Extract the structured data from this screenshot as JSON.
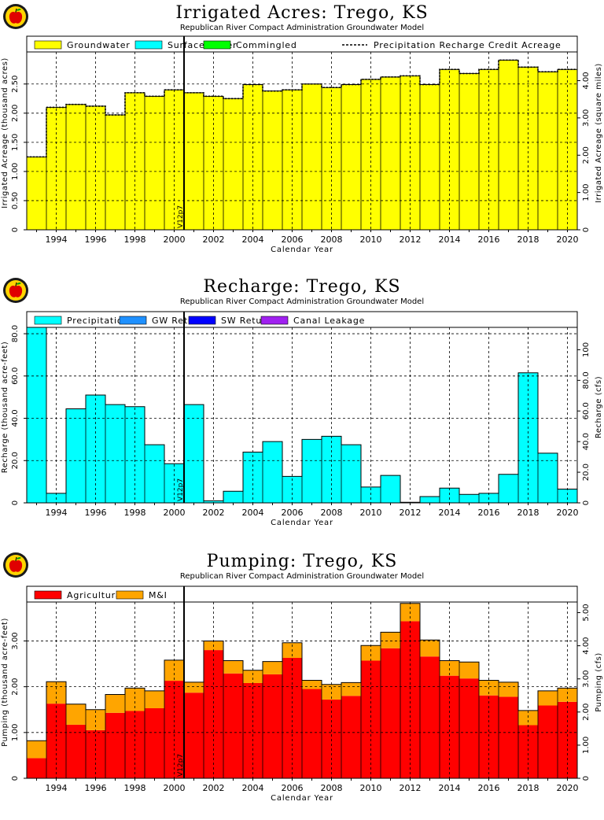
{
  "chart_data": [
    {
      "type": "bar",
      "title": "Irrigated Acres:  Trego, KS",
      "subtitle": "Republican River Compact Administration Groundwater Model",
      "xlabel": "Calendar Year",
      "ylabel": "Irrigated Acreage (thousand acres)",
      "y2label": "Irrigated Acreage (square miles)",
      "years": [
        1993,
        1994,
        1995,
        1996,
        1997,
        1998,
        1999,
        2000,
        2001,
        2002,
        2003,
        2004,
        2005,
        2006,
        2007,
        2008,
        2009,
        2010,
        2011,
        2012,
        2013,
        2014,
        2015,
        2016,
        2017,
        2018,
        2019,
        2020
      ],
      "xticks": [
        "1994",
        "1996",
        "1998",
        "2000",
        "2002",
        "2004",
        "2006",
        "2008",
        "2010",
        "2012",
        "2014",
        "2016",
        "2018",
        "2020"
      ],
      "ylim": [
        0,
        3.05
      ],
      "yticks": [
        "0",
        "0.50",
        "1.00",
        "1.50",
        "2.00",
        "2.50"
      ],
      "y2lim": [
        0,
        4.77
      ],
      "y2ticks": [
        "0",
        "1.00",
        "2.00",
        "3.00",
        "4.00"
      ],
      "marker_label": "V12p7",
      "marker_year": 2000.5,
      "series": [
        {
          "name": "Groundwater",
          "color": "#ffff00",
          "values": [
            1.25,
            2.1,
            2.15,
            2.12,
            1.97,
            2.35,
            2.29,
            2.4,
            2.35,
            2.29,
            2.25,
            2.49,
            2.38,
            2.4,
            2.5,
            2.44,
            2.49,
            2.58,
            2.62,
            2.64,
            2.49,
            2.75,
            2.68,
            2.75,
            2.91,
            2.79,
            2.71,
            2.75
          ]
        },
        {
          "name": "Surface Water",
          "color": "#00ffff",
          "values": [
            0,
            0,
            0,
            0,
            0,
            0,
            0,
            0,
            0,
            0,
            0,
            0,
            0,
            0,
            0,
            0,
            0,
            0,
            0,
            0,
            0,
            0,
            0,
            0,
            0,
            0,
            0,
            0
          ]
        },
        {
          "name": "Commingled",
          "color": "#00ff00",
          "values": [
            0,
            0,
            0,
            0,
            0,
            0,
            0,
            0,
            0,
            0,
            0,
            0,
            0,
            0,
            0,
            0,
            0,
            0,
            0,
            0,
            0,
            0,
            0,
            0,
            0,
            0,
            0,
            0
          ]
        }
      ],
      "line": {
        "name": "Precipitation Recharge Credit Acreage",
        "values": [
          1.25,
          2.1,
          2.15,
          2.12,
          1.97,
          2.35,
          2.29,
          2.4,
          2.35,
          2.29,
          2.25,
          2.49,
          2.38,
          2.4,
          2.5,
          2.44,
          2.49,
          2.58,
          2.62,
          2.64,
          2.49,
          2.75,
          2.68,
          2.75,
          2.91,
          2.79,
          2.71,
          2.75
        ]
      }
    },
    {
      "type": "bar",
      "title": "Recharge:  Trego, KS",
      "subtitle": "Republican River Compact Administration Groundwater Model",
      "xlabel": "Calendar Year",
      "ylabel": "Recharge (thousand acre-feet)",
      "y2label": "Recharge (cfs)",
      "years": [
        1993,
        1994,
        1995,
        1996,
        1997,
        1998,
        1999,
        2000,
        2001,
        2002,
        2003,
        2004,
        2005,
        2006,
        2007,
        2008,
        2009,
        2010,
        2011,
        2012,
        2013,
        2014,
        2015,
        2016,
        2017,
        2018,
        2019,
        2020
      ],
      "xticks": [
        "1994",
        "1996",
        "1998",
        "2000",
        "2002",
        "2004",
        "2006",
        "2008",
        "2010",
        "2012",
        "2014",
        "2016",
        "2018",
        "2020"
      ],
      "ylim": [
        0,
        83
      ],
      "yticks": [
        "0",
        "20.0",
        "40.0",
        "60.0",
        "80.0"
      ],
      "y2lim": [
        0,
        114.6
      ],
      "y2ticks": [
        "0",
        "20.0",
        "40.0",
        "60.0",
        "80.0",
        "100"
      ],
      "marker_label": "V12p7",
      "marker_year": 2000.5,
      "series": [
        {
          "name": "Precipitation",
          "color": "#00ffff",
          "values": [
            83.0,
            4.5,
            44.5,
            51.0,
            46.5,
            45.5,
            27.5,
            18.5,
            46.5,
            1.0,
            5.5,
            24.0,
            29.0,
            12.5,
            30.0,
            31.5,
            27.5,
            7.5,
            13.0,
            0.3,
            3.0,
            7.0,
            4.0,
            4.5,
            13.5,
            61.5,
            23.5,
            6.5
          ]
        },
        {
          "name": "GW Returns",
          "color": "#1e90ff",
          "values": [
            0,
            0,
            0,
            0,
            0,
            0,
            0,
            0,
            0,
            0,
            0,
            0,
            0,
            0,
            0,
            0,
            0,
            0,
            0,
            0,
            0,
            0,
            0,
            0,
            0,
            0,
            0,
            0
          ]
        },
        {
          "name": "SW Returns",
          "color": "#0000ff",
          "values": [
            0,
            0,
            0,
            0,
            0,
            0,
            0,
            0,
            0,
            0,
            0,
            0,
            0,
            0,
            0,
            0,
            0,
            0,
            0,
            0,
            0,
            0,
            0,
            0,
            0,
            0,
            0,
            0
          ]
        },
        {
          "name": "Canal Leakage",
          "color": "#a020f0",
          "values": [
            0,
            0,
            0,
            0,
            0,
            0,
            0,
            0,
            0,
            0,
            0,
            0,
            0,
            0,
            0,
            0,
            0,
            0,
            0,
            0,
            0,
            0,
            0,
            0,
            0,
            0,
            0,
            0
          ]
        }
      ]
    },
    {
      "type": "bar",
      "title": "Pumping:  Trego, KS",
      "subtitle": "Republican River Compact Administration Groundwater Model",
      "xlabel": "Calendar Year",
      "ylabel": "Pumping (thousand acre-feet)",
      "y2label": "Pumping (cfs)",
      "years": [
        1993,
        1994,
        1995,
        1996,
        1997,
        1998,
        1999,
        2000,
        2001,
        2002,
        2003,
        2004,
        2005,
        2006,
        2007,
        2008,
        2009,
        2010,
        2011,
        2012,
        2013,
        2014,
        2015,
        2016,
        2017,
        2018,
        2019,
        2020
      ],
      "xticks": [
        "1994",
        "1996",
        "1998",
        "2000",
        "2002",
        "2004",
        "2006",
        "2008",
        "2010",
        "2012",
        "2014",
        "2016",
        "2018",
        "2020"
      ],
      "ylim": [
        0,
        3.85
      ],
      "yticks": [
        "0",
        "1.00",
        "2.00",
        "3.00"
      ],
      "y2lim": [
        0,
        5.32
      ],
      "y2ticks": [
        "0",
        "1.00",
        "2.00",
        "3.00",
        "4.00",
        "5.00"
      ],
      "marker_label": "V12p7",
      "marker_year": 2000.5,
      "series": [
        {
          "name": "Agricultural",
          "color": "#ff0000",
          "values": [
            0.44,
            1.63,
            1.17,
            1.05,
            1.43,
            1.47,
            1.53,
            2.13,
            1.87,
            2.8,
            2.29,
            2.08,
            2.27,
            2.63,
            1.95,
            1.72,
            1.8,
            2.57,
            2.84,
            3.43,
            2.66,
            2.24,
            2.18,
            1.81,
            1.78,
            1.16,
            1.59,
            1.67
          ]
        },
        {
          "name": "M&I",
          "color": "#ffa500",
          "values": [
            0.38,
            0.48,
            0.45,
            0.45,
            0.4,
            0.5,
            0.38,
            0.45,
            0.23,
            0.2,
            0.28,
            0.28,
            0.28,
            0.33,
            0.19,
            0.33,
            0.29,
            0.33,
            0.35,
            0.39,
            0.36,
            0.33,
            0.36,
            0.33,
            0.32,
            0.32,
            0.32,
            0.3
          ]
        }
      ]
    }
  ]
}
